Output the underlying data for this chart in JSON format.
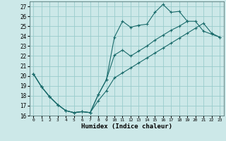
{
  "title": "",
  "xlabel": "Humidex (Indice chaleur)",
  "bg_color": "#cce8e8",
  "grid_color": "#99cccc",
  "line_color": "#1a6b6b",
  "xlim": [
    -0.5,
    23.5
  ],
  "ylim": [
    16,
    27.5
  ],
  "xticks": [
    0,
    1,
    2,
    3,
    4,
    5,
    6,
    7,
    8,
    9,
    10,
    11,
    12,
    13,
    14,
    15,
    16,
    17,
    18,
    19,
    20,
    21,
    22,
    23
  ],
  "yticks": [
    16,
    17,
    18,
    19,
    20,
    21,
    22,
    23,
    24,
    25,
    26,
    27
  ],
  "line1_y": [
    20.2,
    18.9,
    17.9,
    17.1,
    16.5,
    16.3,
    16.4,
    16.3,
    18.1,
    19.6,
    23.9,
    25.5,
    24.9,
    25.1,
    25.2,
    26.4,
    27.2,
    26.4,
    26.5,
    25.5,
    null,
    null,
    null,
    null
  ],
  "line2_y": [
    20.2,
    18.9,
    17.9,
    17.1,
    16.5,
    16.3,
    16.4,
    16.3,
    18.1,
    19.6,
    22.1,
    22.6,
    22.0,
    22.5,
    23.0,
    23.6,
    24.1,
    24.6,
    25.0,
    25.5,
    25.5,
    24.5,
    24.2,
    23.9
  ],
  "line3_y": [
    20.2,
    18.9,
    17.9,
    17.1,
    16.5,
    16.3,
    16.4,
    16.3,
    17.5,
    18.5,
    19.8,
    20.3,
    20.8,
    21.3,
    21.8,
    22.3,
    22.8,
    23.3,
    23.8,
    24.3,
    24.8,
    25.3,
    24.3,
    23.9
  ]
}
